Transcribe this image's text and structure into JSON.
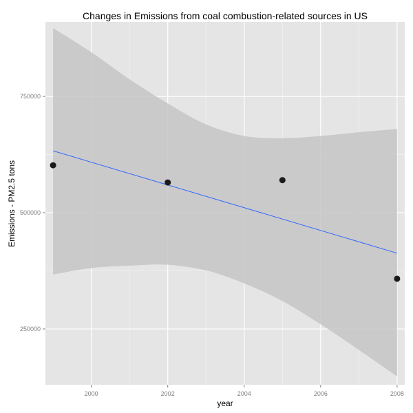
{
  "chart_data": {
    "type": "scatter",
    "title": "Changes in Emissions from coal combustion-related sources in US",
    "xlabel": "year",
    "ylabel": "Emissions - PM2.5 tons",
    "xlim": [
      1998.8,
      2008.2
    ],
    "ylim": [
      130000,
      910000
    ],
    "x_ticks": [
      2000,
      2002,
      2004,
      2006,
      2008
    ],
    "y_ticks": [
      250000,
      500000,
      750000
    ],
    "x_tick_labels": [
      "2000",
      "2002",
      "2004",
      "2006",
      "2008"
    ],
    "y_tick_labels": [
      "250000",
      "500000",
      "750000"
    ],
    "grid": true,
    "points": {
      "x": [
        1999,
        2002,
        2005,
        2008
      ],
      "y": [
        602000,
        565000,
        570000,
        358000
      ]
    },
    "fit": {
      "method": "linear regression",
      "x": [
        1999,
        2008
      ],
      "y": [
        633000,
        413000
      ]
    },
    "confidence_band": {
      "x": [
        1999,
        2000,
        2001,
        2002,
        2003,
        2004,
        2005,
        2006,
        2007,
        2008
      ],
      "upper": [
        897000,
        845000,
        787000,
        735000,
        690000,
        665000,
        660000,
        665000,
        673000,
        680000
      ],
      "lower": [
        367000,
        381000,
        386000,
        388000,
        376000,
        348000,
        310000,
        260000,
        205000,
        148000
      ]
    },
    "colors": {
      "panel": "#e5e5e5",
      "grid_major": "#ffffff",
      "grid_minor": "#f2f2f2",
      "band": "#c5c5c5",
      "fit_line": "#3366ff",
      "points": "#1a1a1a"
    }
  }
}
